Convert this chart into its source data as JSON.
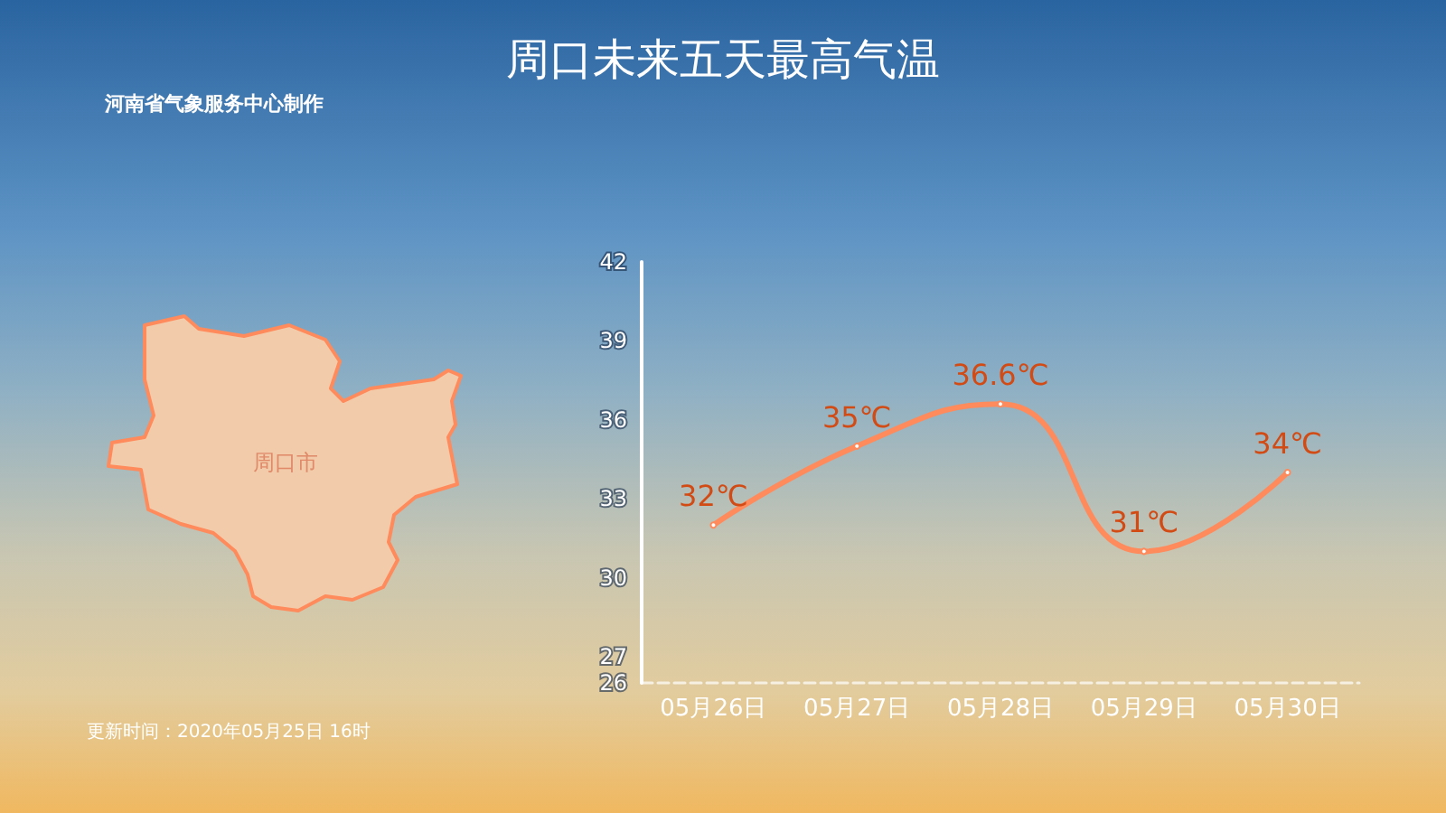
{
  "chart_data": {
    "type": "line",
    "title": "周口未来五天最高气温",
    "categories": [
      "05月26日",
      "05月27日",
      "05月28日",
      "05月29日",
      "05月30日"
    ],
    "series": [
      {
        "color": "#ff8a5c",
        "values": [
          32,
          35,
          36.6,
          31,
          34
        ],
        "value_labels": [
          "32℃",
          "35℃",
          "36.6℃",
          "31℃",
          "34℃"
        ]
      }
    ],
    "ylim": [
      26,
      42
    ],
    "yticks": [
      26,
      27,
      30,
      33,
      36,
      39,
      42
    ],
    "grid": false,
    "marker": "circle",
    "line_style": "solid",
    "annotations": [
      "河南省气象服务中心制作",
      "周口市",
      "更新时间：2020年05月25日  16时"
    ]
  }
}
